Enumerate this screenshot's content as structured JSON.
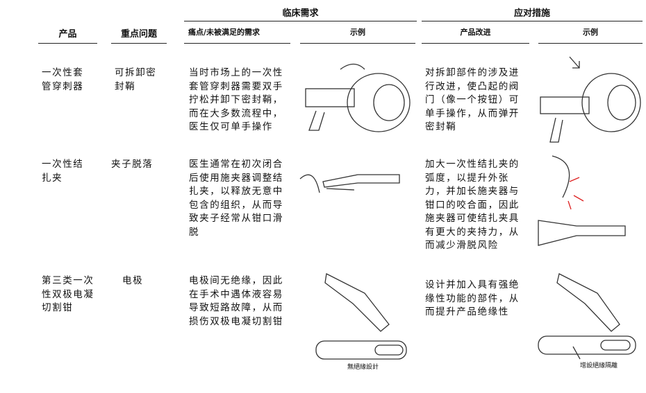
{
  "group_headers": [
    "临床需求",
    "应对措施"
  ],
  "column_headers": [
    "产品",
    "重点问题",
    "痛点/未被满足的需求",
    "示例",
    "产品改进",
    "示例"
  ],
  "rows": [
    {
      "product": "一次性套管穿刺器",
      "issue": "可拆卸密封鞘",
      "need": "当时市场上的一次性套管穿刺器需要双手拧松并卸下密封鞘，而在大多数流程中，医生仅可单手操作",
      "improvement": "对拆卸部件的涉及进行改进，使凸起的阀门（像一个按钮）可单手操作，从而弹开密封鞘"
    },
    {
      "product": "一次性结扎夹",
      "issue": "夹子脱落",
      "need": "医生通常在初次闭合后使用施夹器调整结扎夹，以释放无意中包含的组织，从而导致夹子经常从钳口滑脱",
      "improvement": "加大一次性结扎夹的弧度，以提升外张力，并加长施夹器与钳口的咬合面，因此施夹器可使结扎夹具有更大的夹持力，从而减少滑脱风险"
    },
    {
      "product": "第三类一次性双极电凝切割钳",
      "issue": "电极",
      "need": "电极间无绝缘，因此在手术中遇体液容易导致短路故障，从而损伤双极电凝切割钳",
      "improvement": "设计并加入具有强绝缘性功能的部件，从而提升产品绝缘性"
    }
  ],
  "image_captions": [
    "無絕緣設計",
    "增設絕緣隔離"
  ]
}
